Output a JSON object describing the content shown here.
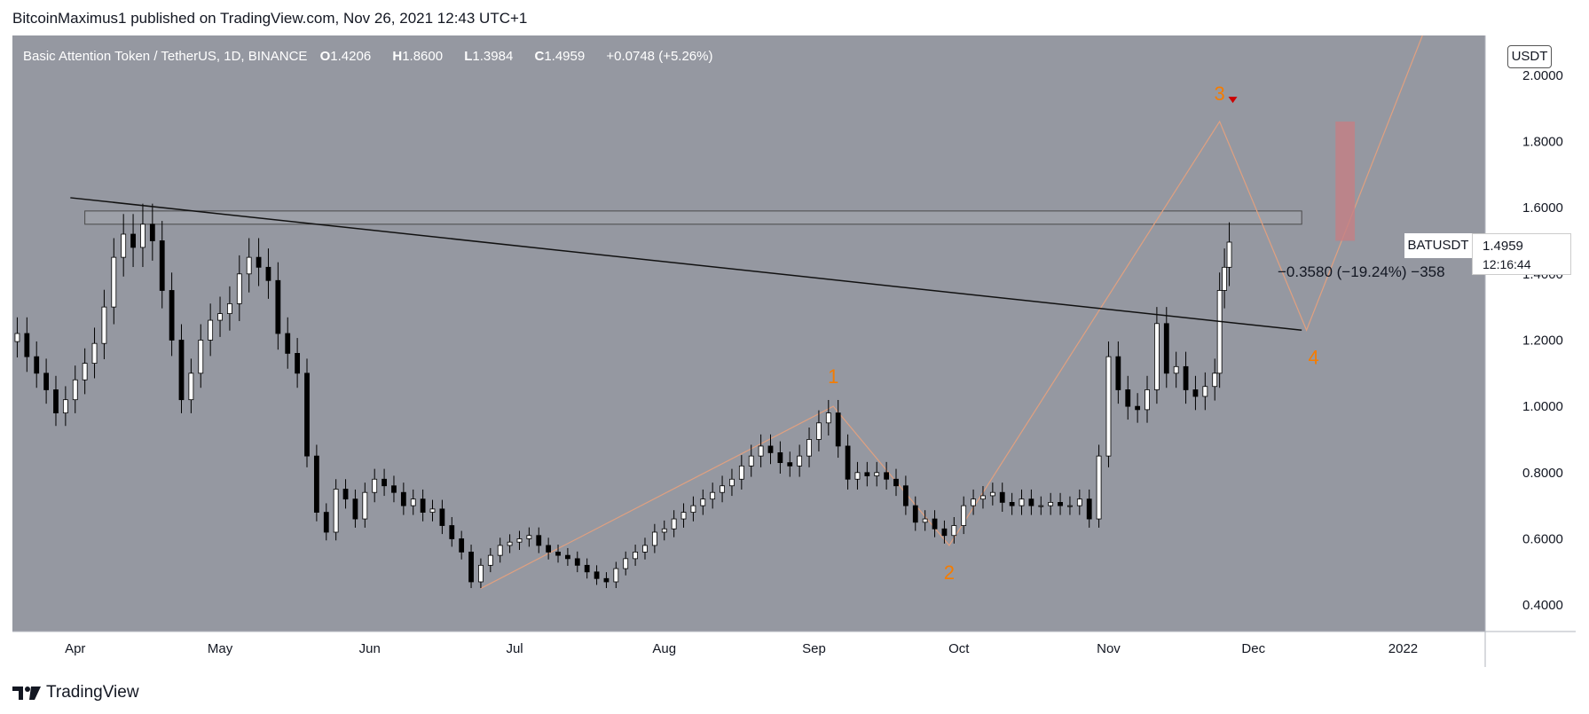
{
  "header": {
    "publisher_text": "BitcoinMaximus1 published on TradingView.com, Nov 26, 2021 12:43 UTC+1"
  },
  "legend": {
    "title": "Basic Attention Token / TetherUS, 1D, BINANCE",
    "open_key": "O",
    "open": "1.4206",
    "high_key": "H",
    "high": "1.8600",
    "low_key": "L",
    "low": "1.3984",
    "close_key": "C",
    "close": "1.4959",
    "change": "+0.0748 (+5.26%)"
  },
  "currency_badge": "USDT",
  "price_tag": {
    "symbol": "BATUSDT",
    "price": "1.4959",
    "countdown": "12:16:44"
  },
  "measure_label": "−0.3580 (−19.24%) −358",
  "wave_labels": [
    "1",
    "2",
    "3",
    "4"
  ],
  "footer": {
    "brand": "TradingView"
  },
  "colors": {
    "background": "#9598a1",
    "up_candle": "#ffffff",
    "down_candle": "#000000",
    "wave_label": "#f57c00",
    "wave_path": "#e0a080",
    "target_box": "#c47f85",
    "arrow": "#cc0000"
  },
  "chart_data": {
    "type": "candlestick",
    "title": "Basic Attention Token / TetherUS, 1D, BINANCE",
    "x_tick_labels": [
      "Apr",
      "May",
      "Jun",
      "Jul",
      "Aug",
      "Sep",
      "Oct",
      "Nov",
      "Dec",
      "2022"
    ],
    "y_tick_labels": [
      "2.0000",
      "1.8000",
      "1.6000",
      "1.4000",
      "1.2000",
      "1.0000",
      "0.8000",
      "0.6000",
      "0.4000"
    ],
    "ylim": [
      0.32,
      2.12
    ],
    "x_range": [
      "2021-03-19",
      "2022-01-18"
    ],
    "grid": false,
    "candles_close": [
      [
        "2021-03-20",
        1.22
      ],
      [
        "2021-03-22",
        1.15
      ],
      [
        "2021-03-24",
        1.1
      ],
      [
        "2021-03-26",
        1.05
      ],
      [
        "2021-03-28",
        0.98
      ],
      [
        "2021-03-30",
        1.02
      ],
      [
        "2021-04-01",
        1.08
      ],
      [
        "2021-04-03",
        1.13
      ],
      [
        "2021-04-05",
        1.19
      ],
      [
        "2021-04-07",
        1.3
      ],
      [
        "2021-04-09",
        1.45
      ],
      [
        "2021-04-11",
        1.52
      ],
      [
        "2021-04-13",
        1.48
      ],
      [
        "2021-04-15",
        1.55
      ],
      [
        "2021-04-17",
        1.5
      ],
      [
        "2021-04-19",
        1.35
      ],
      [
        "2021-04-21",
        1.2
      ],
      [
        "2021-04-23",
        1.02
      ],
      [
        "2021-04-25",
        1.1
      ],
      [
        "2021-04-27",
        1.2
      ],
      [
        "2021-04-29",
        1.26
      ],
      [
        "2021-05-01",
        1.28
      ],
      [
        "2021-05-03",
        1.31
      ],
      [
        "2021-05-05",
        1.4
      ],
      [
        "2021-05-07",
        1.45
      ],
      [
        "2021-05-09",
        1.42
      ],
      [
        "2021-05-11",
        1.38
      ],
      [
        "2021-05-13",
        1.22
      ],
      [
        "2021-05-15",
        1.16
      ],
      [
        "2021-05-17",
        1.1
      ],
      [
        "2021-05-19",
        0.85
      ],
      [
        "2021-05-21",
        0.68
      ],
      [
        "2021-05-23",
        0.62
      ],
      [
        "2021-05-25",
        0.75
      ],
      [
        "2021-05-27",
        0.72
      ],
      [
        "2021-05-29",
        0.66
      ],
      [
        "2021-05-31",
        0.74
      ],
      [
        "2021-06-02",
        0.78
      ],
      [
        "2021-06-04",
        0.76
      ],
      [
        "2021-06-06",
        0.74
      ],
      [
        "2021-06-08",
        0.7
      ],
      [
        "2021-06-10",
        0.72
      ],
      [
        "2021-06-12",
        0.68
      ],
      [
        "2021-06-14",
        0.69
      ],
      [
        "2021-06-16",
        0.64
      ],
      [
        "2021-06-18",
        0.6
      ],
      [
        "2021-06-20",
        0.56
      ],
      [
        "2021-06-22",
        0.47
      ],
      [
        "2021-06-24",
        0.52
      ],
      [
        "2021-06-26",
        0.55
      ],
      [
        "2021-06-28",
        0.58
      ],
      [
        "2021-06-30",
        0.59
      ],
      [
        "2021-07-02",
        0.6
      ],
      [
        "2021-07-04",
        0.61
      ],
      [
        "2021-07-06",
        0.58
      ],
      [
        "2021-07-08",
        0.56
      ],
      [
        "2021-07-10",
        0.55
      ],
      [
        "2021-07-12",
        0.54
      ],
      [
        "2021-07-14",
        0.52
      ],
      [
        "2021-07-16",
        0.5
      ],
      [
        "2021-07-18",
        0.48
      ],
      [
        "2021-07-20",
        0.47
      ],
      [
        "2021-07-22",
        0.51
      ],
      [
        "2021-07-24",
        0.54
      ],
      [
        "2021-07-26",
        0.56
      ],
      [
        "2021-07-28",
        0.58
      ],
      [
        "2021-07-30",
        0.62
      ],
      [
        "2021-08-01",
        0.63
      ],
      [
        "2021-08-03",
        0.66
      ],
      [
        "2021-08-05",
        0.68
      ],
      [
        "2021-08-07",
        0.7
      ],
      [
        "2021-08-09",
        0.72
      ],
      [
        "2021-08-11",
        0.74
      ],
      [
        "2021-08-13",
        0.76
      ],
      [
        "2021-08-15",
        0.78
      ],
      [
        "2021-08-17",
        0.82
      ],
      [
        "2021-08-19",
        0.85
      ],
      [
        "2021-08-21",
        0.88
      ],
      [
        "2021-08-23",
        0.86
      ],
      [
        "2021-08-25",
        0.83
      ],
      [
        "2021-08-27",
        0.82
      ],
      [
        "2021-08-29",
        0.85
      ],
      [
        "2021-08-31",
        0.9
      ],
      [
        "2021-09-02",
        0.95
      ],
      [
        "2021-09-04",
        0.98
      ],
      [
        "2021-09-06",
        0.88
      ],
      [
        "2021-09-08",
        0.78
      ],
      [
        "2021-09-10",
        0.8
      ],
      [
        "2021-09-12",
        0.79
      ],
      [
        "2021-09-14",
        0.8
      ],
      [
        "2021-09-16",
        0.78
      ],
      [
        "2021-09-18",
        0.76
      ],
      [
        "2021-09-20",
        0.7
      ],
      [
        "2021-09-22",
        0.65
      ],
      [
        "2021-09-24",
        0.66
      ],
      [
        "2021-09-26",
        0.63
      ],
      [
        "2021-09-28",
        0.61
      ],
      [
        "2021-09-30",
        0.64
      ],
      [
        "2021-10-02",
        0.7
      ],
      [
        "2021-10-04",
        0.72
      ],
      [
        "2021-10-06",
        0.73
      ],
      [
        "2021-10-08",
        0.74
      ],
      [
        "2021-10-10",
        0.71
      ],
      [
        "2021-10-12",
        0.7
      ],
      [
        "2021-10-14",
        0.72
      ],
      [
        "2021-10-16",
        0.7
      ],
      [
        "2021-10-18",
        0.7
      ],
      [
        "2021-10-20",
        0.71
      ],
      [
        "2021-10-22",
        0.7
      ],
      [
        "2021-10-24",
        0.7
      ],
      [
        "2021-10-26",
        0.72
      ],
      [
        "2021-10-28",
        0.66
      ],
      [
        "2021-10-30",
        0.85
      ],
      [
        "2021-11-01",
        1.15
      ],
      [
        "2021-11-03",
        1.05
      ],
      [
        "2021-11-05",
        1.0
      ],
      [
        "2021-11-07",
        0.99
      ],
      [
        "2021-11-09",
        1.05
      ],
      [
        "2021-11-11",
        1.25
      ],
      [
        "2021-11-13",
        1.1
      ],
      [
        "2021-11-15",
        1.12
      ],
      [
        "2021-11-17",
        1.05
      ],
      [
        "2021-11-19",
        1.03
      ],
      [
        "2021-11-21",
        1.06
      ],
      [
        "2021-11-23",
        1.1
      ],
      [
        "2021-11-24",
        1.35
      ],
      [
        "2021-11-25",
        1.42
      ],
      [
        "2021-11-26",
        1.4959
      ]
    ],
    "trendline": {
      "from": [
        "2021-03-31",
        1.63
      ],
      "to": [
        "2021-12-11",
        1.23
      ]
    },
    "resistance_zone": [
      1.55,
      1.59
    ],
    "wave_points": [
      {
        "label": "1",
        "date": "2021-09-05",
        "value": 1.0
      },
      {
        "label": "2",
        "date": "2021-09-29",
        "value": 0.58
      },
      {
        "label": "3",
        "date": "2021-11-24",
        "value": 1.86
      },
      {
        "label": "4",
        "date": "2021-12-12",
        "value": 1.23
      }
    ],
    "measurement": {
      "change": -0.358,
      "change_percent": -19.24
    }
  }
}
